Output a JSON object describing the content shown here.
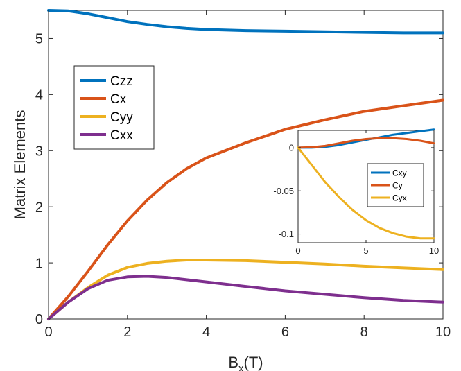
{
  "chart_data": [
    {
      "type": "line",
      "xlabel": "B",
      "xlabel_sub": "x",
      "xlabel_suffix": "(T)",
      "ylabel": "Matrix Elements",
      "xlim": [
        0,
        10
      ],
      "ylim": [
        0,
        5.5
      ],
      "xticks": [
        0,
        2,
        4,
        6,
        8,
        10
      ],
      "xtick_labels": [
        "0",
        "2",
        "4",
        "6",
        "8",
        "10"
      ],
      "yticks": [
        0,
        1,
        2,
        3,
        4,
        5
      ],
      "ytick_labels": [
        "0",
        "1",
        "2",
        "3",
        "4",
        "5"
      ],
      "grid": false,
      "legend_position": "upper-left",
      "series": [
        {
          "name": "Czz",
          "color": "#0072BD",
          "x": [
            0,
            0.5,
            1,
            1.5,
            2,
            2.5,
            3,
            3.5,
            4,
            5,
            6,
            7,
            8,
            9,
            10
          ],
          "y": [
            5.5,
            5.49,
            5.44,
            5.37,
            5.3,
            5.25,
            5.21,
            5.18,
            5.16,
            5.14,
            5.13,
            5.12,
            5.11,
            5.1,
            5.1
          ]
        },
        {
          "name": "Cx",
          "color": "#D95319",
          "x": [
            0,
            0.5,
            1,
            1.5,
            2,
            2.5,
            3,
            3.5,
            4,
            5,
            6,
            7,
            8,
            9,
            10
          ],
          "y": [
            0,
            0.4,
            0.85,
            1.32,
            1.75,
            2.12,
            2.43,
            2.68,
            2.87,
            3.14,
            3.38,
            3.55,
            3.7,
            3.8,
            3.9
          ]
        },
        {
          "name": "Cyy",
          "color": "#EDB120",
          "x": [
            0,
            0.5,
            1,
            1.5,
            2,
            2.5,
            3,
            3.5,
            4,
            5,
            6,
            7,
            8,
            9,
            10
          ],
          "y": [
            0,
            0.3,
            0.56,
            0.78,
            0.92,
            0.99,
            1.03,
            1.05,
            1.05,
            1.04,
            1.01,
            0.98,
            0.94,
            0.91,
            0.88
          ]
        },
        {
          "name": "Cxx",
          "color": "#7E2F8E",
          "x": [
            0,
            0.5,
            1,
            1.5,
            2,
            2.5,
            3,
            3.5,
            4,
            5,
            6,
            7,
            8,
            9,
            10
          ],
          "y": [
            0,
            0.3,
            0.54,
            0.69,
            0.75,
            0.76,
            0.74,
            0.7,
            0.66,
            0.58,
            0.5,
            0.44,
            0.38,
            0.33,
            0.3
          ]
        }
      ]
    },
    {
      "type": "line",
      "xlim": [
        0,
        10
      ],
      "ylim": [
        -0.11,
        0.02
      ],
      "xticks": [
        0,
        5,
        10
      ],
      "xtick_labels": [
        "0",
        "5",
        "10"
      ],
      "yticks": [
        0,
        -0.05,
        -0.1
      ],
      "ytick_labels": [
        "0",
        "-0.05",
        "-0.1"
      ],
      "grid": false,
      "legend_position": "right",
      "series": [
        {
          "name": "Cxy",
          "color": "#0072BD",
          "x": [
            0,
            1,
            2,
            3,
            4,
            5,
            6,
            7,
            8,
            9,
            10
          ],
          "y": [
            0,
            0,
            0.001,
            0.003,
            0.006,
            0.009,
            0.012,
            0.015,
            0.017,
            0.019,
            0.021
          ]
        },
        {
          "name": "Cy",
          "color": "#D95319",
          "x": [
            0,
            1,
            2,
            3,
            4,
            5,
            6,
            7,
            8,
            9,
            10
          ],
          "y": [
            0,
            0.0005,
            0.002,
            0.005,
            0.008,
            0.01,
            0.011,
            0.011,
            0.01,
            0.008,
            0.005
          ]
        },
        {
          "name": "Cyx",
          "color": "#EDB120",
          "x": [
            0,
            1,
            2,
            3,
            4,
            5,
            6,
            7,
            8,
            9,
            10
          ],
          "y": [
            0,
            -0.02,
            -0.04,
            -0.057,
            -0.072,
            -0.084,
            -0.093,
            -0.099,
            -0.103,
            -0.105,
            -0.105
          ]
        }
      ]
    }
  ]
}
